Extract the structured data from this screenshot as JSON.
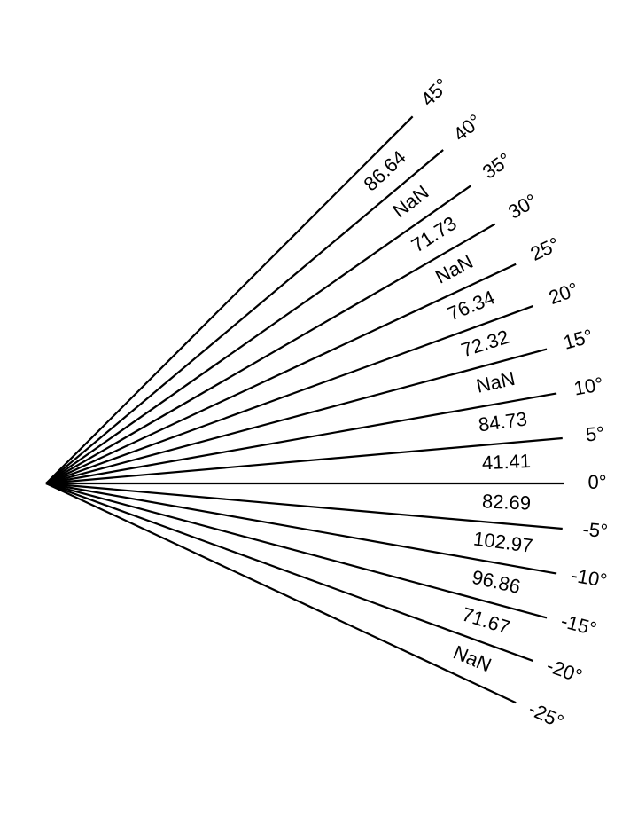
{
  "chart_data": {
    "type": "radial-fan",
    "angles": [
      45,
      40,
      35,
      30,
      25,
      20,
      15,
      10,
      5,
      0,
      -5,
      -10,
      -15,
      -20,
      -25
    ],
    "angle_labels": [
      "45°",
      "40°",
      "35°",
      "30°",
      "25°",
      "20°",
      "15°",
      "10°",
      "5°",
      "0°",
      "-5°",
      "-10°",
      "-15°",
      "-20°",
      "-25°"
    ],
    "sector_values": [
      "86.64",
      "NaN",
      "71.73",
      "NaN",
      "76.34",
      "72.32",
      "NaN",
      "84.73",
      "41.41",
      "82.69",
      "102.97",
      "96.86",
      "71.67",
      "NaN"
    ],
    "line_color": "#000000"
  }
}
